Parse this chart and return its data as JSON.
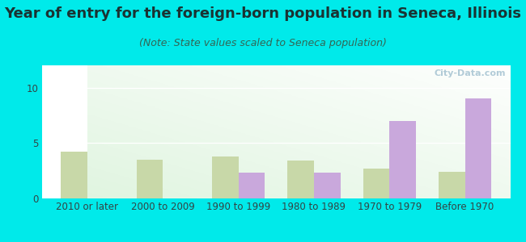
{
  "title": "Year of entry for the foreign-born population in Seneca, Illinois",
  "subtitle": "(Note: State values scaled to Seneca population)",
  "categories": [
    "2010 or later",
    "2000 to 2009",
    "1990 to 1999",
    "1980 to 1989",
    "1970 to 1979",
    "Before 1970"
  ],
  "seneca_values": [
    0,
    0,
    2.3,
    2.3,
    7.0,
    9.0
  ],
  "illinois_values": [
    4.2,
    3.5,
    3.8,
    3.4,
    2.7,
    2.4
  ],
  "seneca_color": "#c9a8dc",
  "illinois_color": "#c8d8a8",
  "background_color": "#00eaea",
  "ylim": [
    0,
    12
  ],
  "yticks": [
    0,
    5,
    10
  ],
  "bar_width": 0.35,
  "title_fontsize": 13,
  "subtitle_fontsize": 9,
  "legend_fontsize": 10,
  "tick_fontsize": 8.5,
  "watermark_text": "City-Data.com",
  "title_color": "#1a3333",
  "subtitle_color": "#336655",
  "tick_color": "#334444"
}
